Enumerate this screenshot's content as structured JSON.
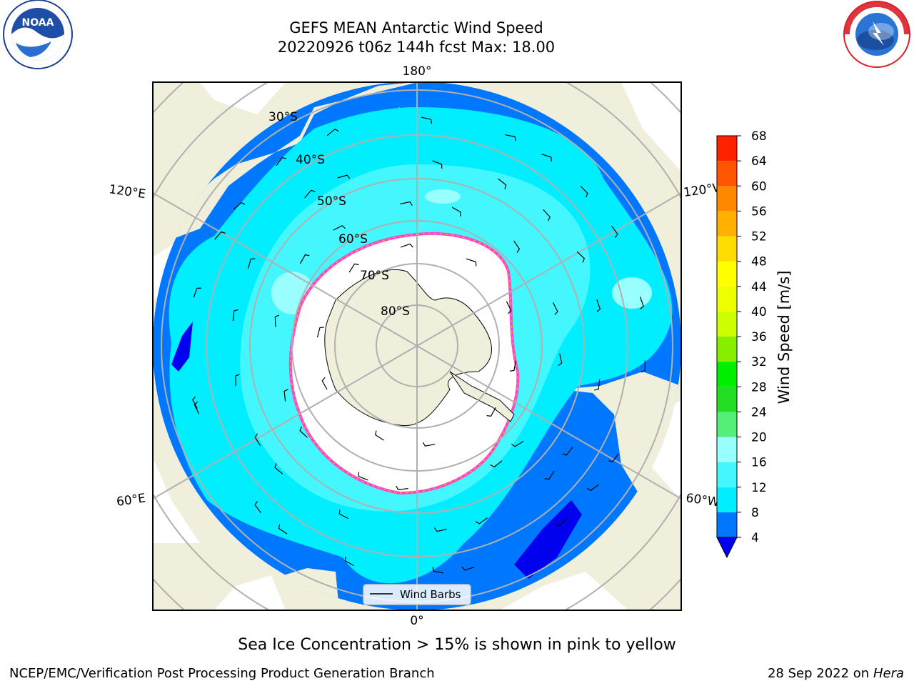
{
  "title": {
    "line1": "GEFS MEAN Antarctic Wind Speed",
    "line2": "20220926 t06z 144h fcst   Max: 18.00"
  },
  "map": {
    "projection": "south-polar-stereographic",
    "lat_labels": [
      "30°S",
      "40°S",
      "50°S",
      "60°S",
      "70°S",
      "80°S"
    ],
    "lon_labels": {
      "top": "180°",
      "bottom": "0°",
      "upper_left": "120°E",
      "lower_left": "60°E",
      "upper_right": "120°W",
      "lower_right": "60°W"
    },
    "legend_label": "Wind Barbs"
  },
  "colorbar": {
    "label": "Wind Speed [m/s]",
    "ticks": [
      "4",
      "8",
      "12",
      "16",
      "20",
      "24",
      "28",
      "32",
      "36",
      "40",
      "44",
      "48",
      "52",
      "56",
      "60",
      "64",
      "68"
    ],
    "colors": [
      "#0077ff",
      "#00eeff",
      "#44f7ff",
      "#99ffff",
      "#55ee77",
      "#22dd22",
      "#00ee00",
      "#88ee00",
      "#ccff00",
      "#eeff00",
      "#ffff00",
      "#ffdd00",
      "#ffb000",
      "#ff8800",
      "#ff5500",
      "#ff2200"
    ],
    "under_color": "#0000ee"
  },
  "field_colors": {
    "land": "#efefdc",
    "ice": "#ffffff",
    "ice_edge": "#ff44cc",
    "ice_fringe": "#ffaa22",
    "band_4_8": "#0077ff",
    "band_8_12": "#00eeff",
    "band_12_16": "#44f7ff",
    "band_16_20": "#99ffff",
    "below_4": "#0000ee"
  },
  "subtitle": "Sea Ice Concentration > 15% is shown in pink to yellow",
  "footer": {
    "left": "NCEP/EMC/Verification Post Processing Product Generation Branch",
    "date": "28 Sep 2022 on",
    "machine": "Hera"
  },
  "logos": {
    "left": "NOAA",
    "right": "NATIONAL WEATHER SERVICE"
  }
}
